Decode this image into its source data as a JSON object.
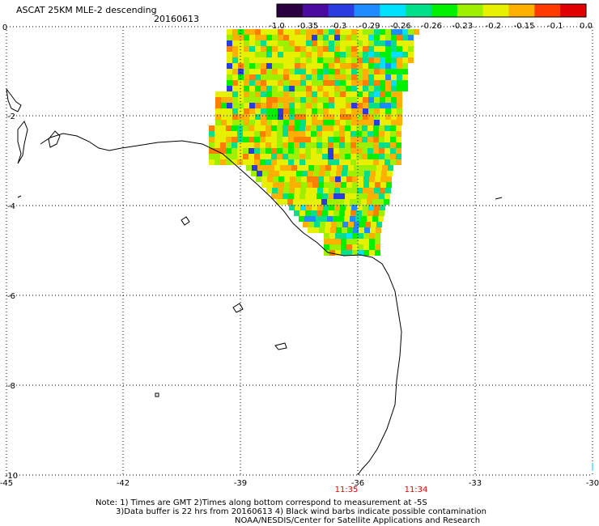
{
  "header": {
    "title": "ASCAT 25KM MLE-2 descending",
    "date": "20160613"
  },
  "colorbar": {
    "labels": [
      "-1.0",
      "-0.35",
      "-0.3",
      "-0.29",
      "-0.26",
      "-0.26",
      "-0.23",
      "-0.2",
      "-0.15",
      "-0.1",
      "0.0"
    ],
    "colors": [
      "#2a0040",
      "#4b0aa0",
      "#2a3ce0",
      "#1e8cff",
      "#00e0ff",
      "#00e08a",
      "#00f000",
      "#9ef000",
      "#e6f000",
      "#ffb000",
      "#ff3c00",
      "#e00000"
    ]
  },
  "axes": {
    "x_ticks": [
      "-45",
      "-42",
      "-39",
      "-36",
      "-33",
      "-30"
    ],
    "y_ticks": [
      "0",
      "-2",
      "-4",
      "-6",
      "-8",
      "-10"
    ]
  },
  "times": {
    "left": "11:35",
    "right": "11:34",
    "color": "#e00000"
  },
  "notes": {
    "line1": "Note: 1) Times are GMT 2)Times along bottom correspond to measurement at -5S",
    "line2": "3)Data buffer is 22 hrs from 20160613 4) Black wind barbs indicate possible contamination",
    "line3": "NOAA/NESDIS/Center for Satellite Applications and Research"
  }
}
